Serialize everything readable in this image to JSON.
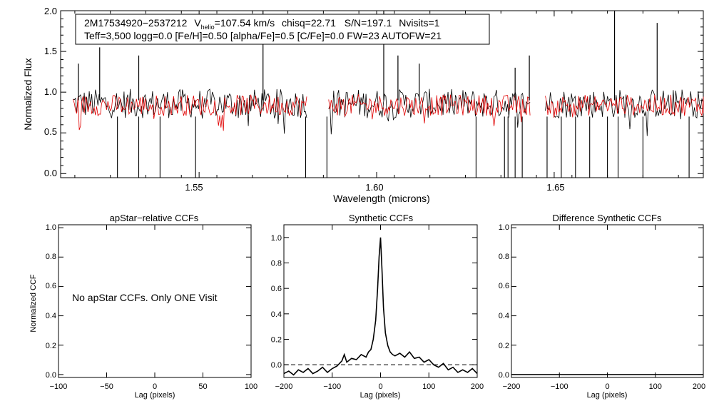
{
  "chart_data": [
    {
      "type": "line",
      "id": "spectrum",
      "xlabel": "Wavelength (microns)",
      "ylabel": "Normalized Flux",
      "xlim": [
        1.511,
        1.692
      ],
      "ylim": [
        -0.05,
        2.0
      ],
      "xticks": [
        1.55,
        1.6,
        1.65
      ],
      "xtick_labels": [
        "1.55",
        "1.60",
        "1.65"
      ],
      "yticks": [
        0.0,
        0.5,
        1.0,
        1.5,
        2.0
      ],
      "ytick_labels": [
        "0.0",
        "0.5",
        "1.0",
        "1.5",
        "2.0"
      ],
      "chip_ranges": [
        [
          1.5145,
          1.5805
        ],
        [
          1.5865,
          1.6435
        ],
        [
          1.6475,
          1.6955
        ]
      ],
      "series": [
        {
          "name": "observed",
          "color": "#000000",
          "baseline": 0.86,
          "noise": 0.18
        },
        {
          "name": "model",
          "color": "#e00000",
          "baseline": 0.84,
          "noise": 0.13
        }
      ],
      "upward_spikes": [
        1.516,
        1.522,
        1.533,
        1.568,
        1.602,
        1.606,
        1.612,
        1.639,
        1.643,
        1.667,
        1.679
      ],
      "downward_lines": [
        1.527,
        1.533,
        1.539,
        1.549,
        1.58,
        1.586,
        1.628,
        1.636,
        1.637,
        1.639,
        1.641,
        1.648,
        1.652,
        1.656,
        1.66,
        1.665,
        1.668,
        1.675,
        1.688
      ],
      "legend": {
        "object": "2M17534920−2537212",
        "vhelio_sub": "helio",
        "vhelio_value": "=107.54 km/s",
        "chisq": "chisq=22.71",
        "sn": "S/N=197.1",
        "nvisits": "Nvisits=1",
        "params": "Teff=3,500 logg=0.0 [Fe/H]=0.50 [alpha/Fe]=0.5 [C/Fe]=0.0 FW=23 AUTOFW=21"
      }
    },
    {
      "type": "line",
      "id": "apstar",
      "title": "apStar−relative CCFs",
      "xlabel": "Lag (pixels)",
      "ylabel": "Normalized CCF",
      "xlim": [
        -100,
        100
      ],
      "ylim": [
        -0.02,
        1.02
      ],
      "xtick_labels": [
        "−100",
        "−50",
        "0",
        "50",
        "100"
      ],
      "ytick_labels": [
        "0.0",
        "0.2",
        "0.4",
        "0.6",
        "0.8",
        "1.0"
      ],
      "annotation": "No apStar CCFs.  Only ONE Visit",
      "series": []
    },
    {
      "type": "line",
      "id": "synthetic",
      "title": "Synthetic CCFs",
      "xlabel": "Lag (pixels)",
      "xlim": [
        -200,
        200
      ],
      "ylim": [
        -0.1,
        1.1
      ],
      "xtick_labels": [
        "−200",
        "−100",
        "0",
        "100",
        "200"
      ],
      "ytick_labels": [
        "0.0",
        "0.2",
        "0.4",
        "0.6",
        "0.8",
        "1.0"
      ],
      "zero_line": 0.0,
      "series": [
        {
          "name": "ccf",
          "x": [
            -200,
            -190,
            -180,
            -170,
            -160,
            -150,
            -140,
            -130,
            -120,
            -110,
            -100,
            -90,
            -80,
            -75,
            -70,
            -60,
            -50,
            -40,
            -30,
            -25,
            -20,
            -15,
            -10,
            -6,
            -3,
            0,
            3,
            6,
            10,
            15,
            20,
            25,
            30,
            40,
            50,
            60,
            70,
            80,
            90,
            100,
            110,
            120,
            130,
            140,
            150,
            160,
            170,
            180,
            190,
            200
          ],
          "y": [
            -0.07,
            -0.05,
            -0.08,
            -0.04,
            -0.06,
            -0.03,
            -0.07,
            -0.05,
            -0.02,
            -0.06,
            -0.03,
            -0.01,
            0.03,
            0.08,
            0.02,
            0.05,
            0.04,
            0.08,
            0.06,
            0.1,
            0.12,
            0.2,
            0.35,
            0.6,
            0.85,
            1.0,
            0.75,
            0.45,
            0.25,
            0.15,
            0.1,
            0.08,
            0.07,
            0.09,
            0.06,
            0.1,
            0.05,
            0.06,
            0.02,
            0.04,
            0.0,
            -0.02,
            0.01,
            -0.04,
            -0.02,
            -0.06,
            -0.04,
            -0.06,
            -0.03,
            -0.07
          ]
        }
      ]
    },
    {
      "type": "line",
      "id": "difference",
      "title": "Difference Synthetic CCFs",
      "xlabel": "Lag (pixels)",
      "xlim": [
        -200,
        200
      ],
      "ylim": [
        -0.02,
        1.02
      ],
      "xtick_labels": [
        "−200",
        "−100",
        "0",
        "100",
        "200"
      ],
      "ytick_labels": [
        "0.0",
        "0.2",
        "0.4",
        "0.6",
        "0.8",
        "1.0"
      ],
      "series": [
        {
          "name": "diff",
          "x": [
            -200,
            200
          ],
          "y": [
            0.0,
            0.0
          ]
        }
      ]
    }
  ]
}
